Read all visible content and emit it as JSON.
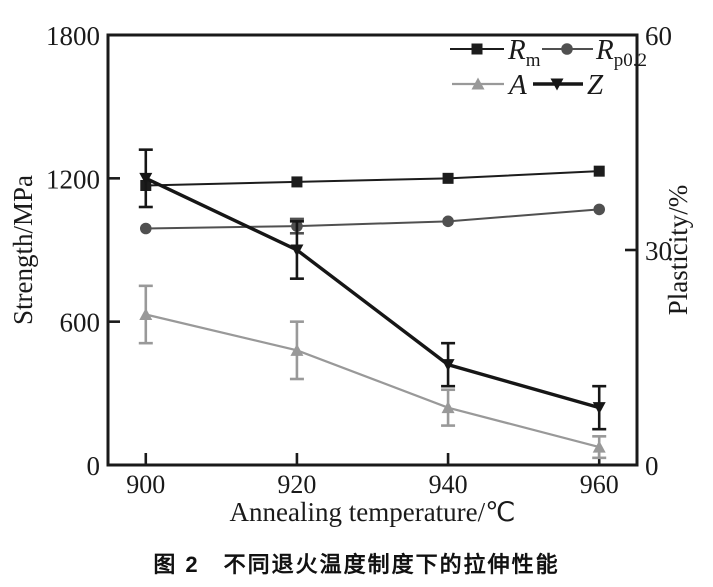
{
  "figure": {
    "caption": "图 2　不同退火温度制度下的拉伸性能"
  },
  "chart_data": {
    "type": "line",
    "title": "",
    "grid": false,
    "legend_position": "top-right-inside",
    "x_axis": {
      "label": "Annealing temperature/℃",
      "domain": [
        895,
        965
      ],
      "tick_values": [
        900,
        920,
        940,
        960
      ],
      "tick_labels": [
        "900",
        "920",
        "940",
        "960"
      ]
    },
    "left_axis": {
      "label": "Strength/MPa",
      "range": [
        0,
        1800
      ],
      "ticks": [
        {
          "value": 0,
          "label": "0"
        },
        {
          "value": 600,
          "label": "600"
        },
        {
          "value": 1200,
          "label": "1200"
        },
        {
          "value": 1800,
          "label": "1800"
        }
      ]
    },
    "right_axis": {
      "label": "Plasticity/%",
      "range": [
        0,
        60
      ],
      "ticks": [
        {
          "value": 0,
          "label": "0"
        },
        {
          "value": 30,
          "label": "30"
        },
        {
          "value": 60,
          "label": "60"
        }
      ]
    },
    "series": [
      {
        "name": "Rm",
        "legend_main": "R",
        "legend_sub": "m",
        "axis": "left",
        "marker": "square",
        "color": "#1c1c1c",
        "line_width": 2,
        "x": [
          900,
          920,
          940,
          960
        ],
        "values": [
          1170,
          1185,
          1200,
          1230
        ],
        "errors": [
          0,
          0,
          0,
          0
        ]
      },
      {
        "name": "Rp0.2",
        "legend_main": "R",
        "legend_sub": "p0.2",
        "axis": "left",
        "marker": "circle",
        "color": "#505050",
        "line_width": 2,
        "x": [
          900,
          920,
          940,
          960
        ],
        "values": [
          990,
          1000,
          1020,
          1070
        ],
        "errors": [
          0,
          30,
          0,
          0
        ]
      },
      {
        "name": "A",
        "legend_main": "A",
        "legend_sub": "",
        "axis": "right",
        "marker": "triangle-up",
        "color": "#999999",
        "line_width": 2.2,
        "x": [
          900,
          920,
          940,
          960
        ],
        "values": [
          21,
          16,
          8,
          2.5
        ],
        "errors": [
          4,
          4,
          2.5,
          1.5
        ]
      },
      {
        "name": "Z",
        "legend_main": "Z",
        "legend_sub": "",
        "axis": "right",
        "marker": "triangle-down",
        "color": "#161616",
        "line_width": 3.4,
        "x": [
          900,
          920,
          940,
          960
        ],
        "values": [
          40,
          30,
          14,
          8
        ],
        "errors": [
          4,
          4,
          3,
          3
        ]
      }
    ]
  },
  "colors": {
    "frame": "#1a1a1a",
    "background": "#ffffff"
  }
}
